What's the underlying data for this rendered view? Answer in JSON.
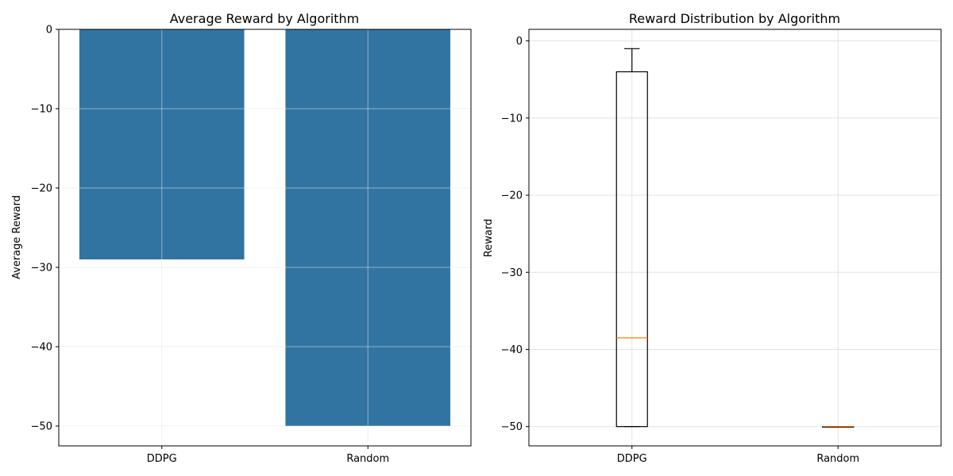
{
  "chart_data": [
    {
      "type": "bar",
      "title": "Average Reward by Algorithm",
      "xlabel": "",
      "ylabel": "Average Reward",
      "categories": [
        "DDPG",
        "Random"
      ],
      "values": [
        -29,
        -50
      ],
      "ylim": [
        -52.5,
        0
      ],
      "yticks": [
        0,
        -10,
        -20,
        -30,
        -40,
        -50
      ],
      "ytick_labels": [
        "0",
        "−10",
        "−20",
        "−30",
        "−40",
        "−50"
      ],
      "grid": true,
      "colors": {
        "bar": "#3274a1"
      }
    },
    {
      "type": "box",
      "title": "Reward Distribution by Algorithm",
      "xlabel": "",
      "ylabel": "Reward",
      "categories": [
        "DDPG",
        "Random"
      ],
      "boxes": [
        {
          "category": "DDPG",
          "whisker_low": -50,
          "q1": -50,
          "median": -38.5,
          "q3": -4,
          "whisker_high": -1
        },
        {
          "category": "Random",
          "whisker_low": -50,
          "q1": -50,
          "median": -50,
          "q3": -50,
          "whisker_high": -50
        }
      ],
      "ylim": [
        -52.5,
        1.5
      ],
      "yticks": [
        0,
        -10,
        -20,
        -30,
        -40,
        -50
      ],
      "ytick_labels": [
        "0",
        "−10",
        "−20",
        "−30",
        "−40",
        "−50"
      ],
      "grid": true,
      "colors": {
        "box": "#000000",
        "median": "#ff7f0e"
      }
    }
  ]
}
